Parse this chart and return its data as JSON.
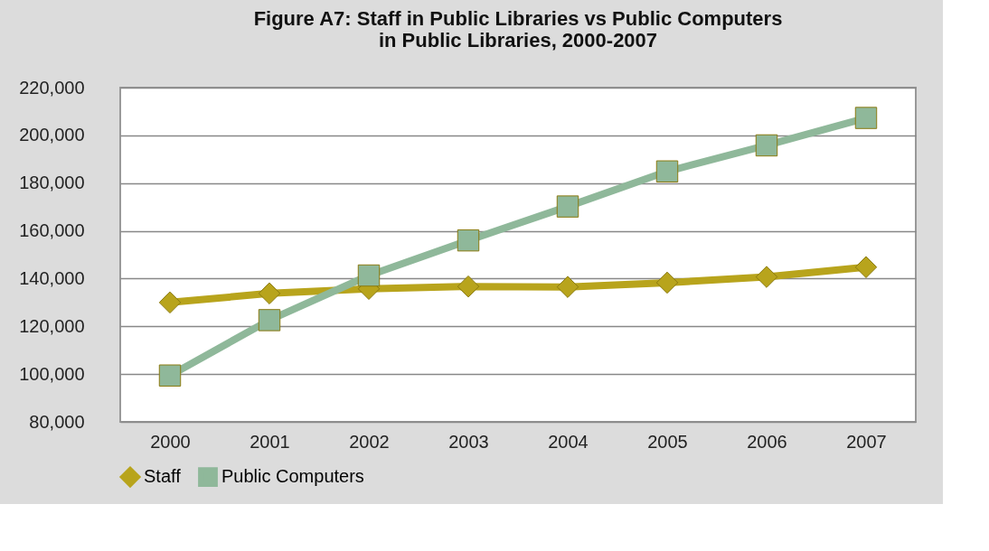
{
  "chart_data": {
    "type": "line",
    "title": [
      "Figure A7: Staff in Public Libraries vs Public Computers",
      "in Public Libraries, 2000-2007"
    ],
    "categories": [
      "2000",
      "2001",
      "2002",
      "2003",
      "2004",
      "2005",
      "2006",
      "2007"
    ],
    "series": [
      {
        "name": "Staff",
        "color": "#b8a41c",
        "marker": "diamond",
        "values": [
          130000,
          133800,
          135700,
          136700,
          136500,
          138300,
          140700,
          144800
        ]
      },
      {
        "name": "Public Computers",
        "color": "#8fb89a",
        "marker": "square",
        "values": [
          99400,
          122600,
          141300,
          156000,
          170200,
          184900,
          195800,
          207300
        ]
      }
    ],
    "ylim": [
      80000,
      220000
    ],
    "yticks": [
      {
        "value": 80000,
        "label": "80,000"
      },
      {
        "value": 100000,
        "label": "100,000"
      },
      {
        "value": 120000,
        "label": "120,000"
      },
      {
        "value": 140000,
        "label": "140,000"
      },
      {
        "value": 160000,
        "label": "160,000"
      },
      {
        "value": 180000,
        "label": "180,000"
      },
      {
        "value": 200000,
        "label": "200,000"
      },
      {
        "value": 220000,
        "label": "220,000"
      }
    ],
    "grid": "y",
    "legend": "bottom",
    "line_style": "solid"
  }
}
